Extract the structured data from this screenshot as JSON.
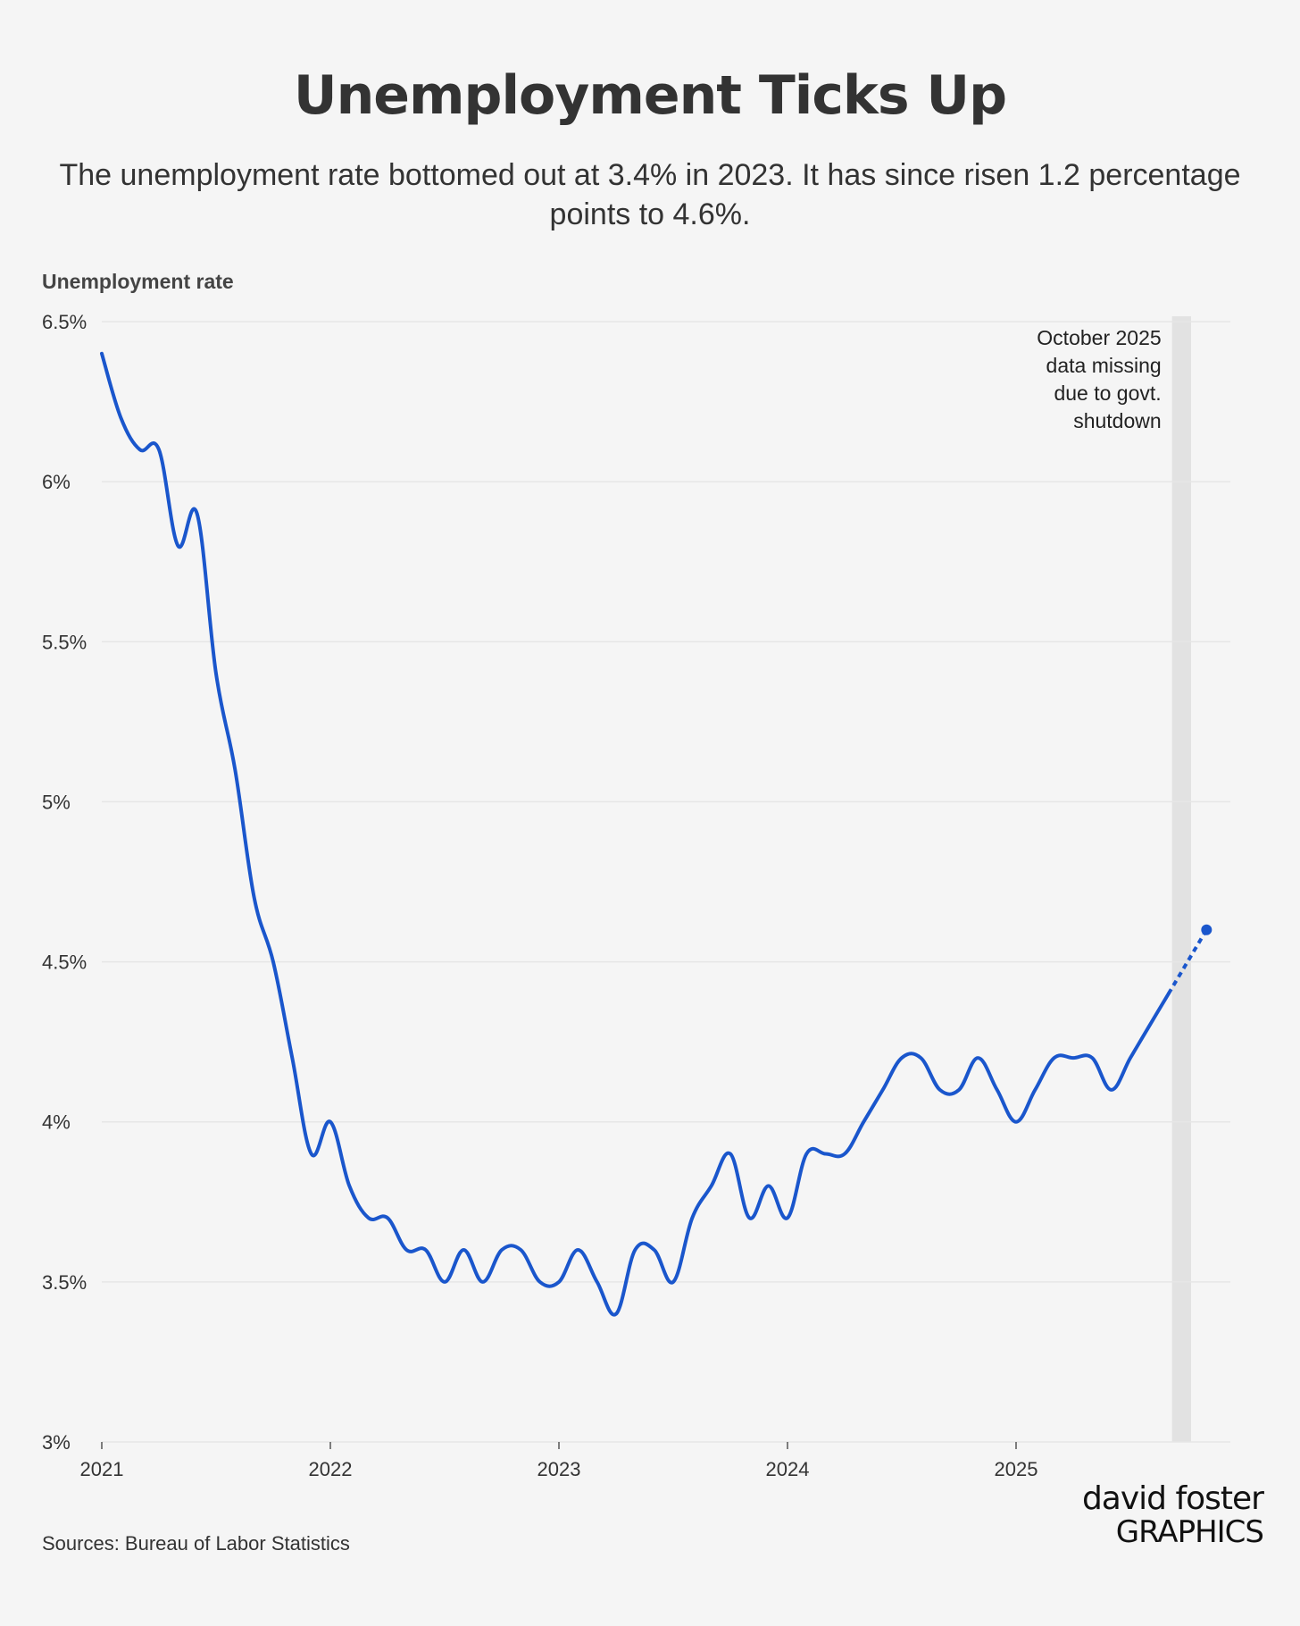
{
  "title": "Unemployment Ticks Up",
  "subtitle": "The unemployment rate bottomed out at 3.4% in 2023. It has since risen 1.2 percentage points to 4.6%.",
  "source": "Sources: Bureau of Labor Statistics",
  "logo": {
    "line1": "david foster",
    "line2": "GRAPHICS"
  },
  "colors": {
    "line": "#1a56cc",
    "grid": "#e6e6e6",
    "shade": "#e2e2e2",
    "text": "#333333",
    "logo_accent": "#1ea3e0"
  },
  "chart_data": {
    "type": "line",
    "title": "Unemployment Ticks Up",
    "ylabel": "Unemployment rate",
    "xlabel": "",
    "ylim": [
      3.0,
      6.5
    ],
    "yticks": [
      3.0,
      3.5,
      4.0,
      4.5,
      5.0,
      5.5,
      6.0,
      6.5
    ],
    "ytick_labels": [
      "3%",
      "3.5%",
      "4%",
      "4.5%",
      "5%",
      "5.5%",
      "6%",
      "6.5%"
    ],
    "xlim": [
      2021.0,
      2025.95
    ],
    "xticks": [
      2021,
      2022,
      2023,
      2024,
      2025
    ],
    "xtick_labels": [
      "2021",
      "2022",
      "2023",
      "2024",
      "2025"
    ],
    "grid": true,
    "series": [
      {
        "name": "Unemployment rate",
        "x": [
          2021.0,
          2021.0833,
          2021.1667,
          2021.25,
          2021.3333,
          2021.4167,
          2021.5,
          2021.5833,
          2021.6667,
          2021.75,
          2021.8333,
          2021.9167,
          2022.0,
          2022.0833,
          2022.1667,
          2022.25,
          2022.3333,
          2022.4167,
          2022.5,
          2022.5833,
          2022.6667,
          2022.75,
          2022.8333,
          2022.9167,
          2023.0,
          2023.0833,
          2023.1667,
          2023.25,
          2023.3333,
          2023.4167,
          2023.5,
          2023.5833,
          2023.6667,
          2023.75,
          2023.8333,
          2023.9167,
          2024.0,
          2024.0833,
          2024.1667,
          2024.25,
          2024.3333,
          2024.4167,
          2024.5,
          2024.5833,
          2024.6667,
          2024.75,
          2024.8333,
          2024.9167,
          2025.0,
          2025.0833,
          2025.1667,
          2025.25,
          2025.3333,
          2025.4167,
          2025.5,
          2025.5833,
          2025.6667
        ],
        "values": [
          6.4,
          6.2,
          6.1,
          6.1,
          5.8,
          5.9,
          5.4,
          5.1,
          4.7,
          4.5,
          4.2,
          3.9,
          4.0,
          3.8,
          3.7,
          3.7,
          3.6,
          3.6,
          3.5,
          3.6,
          3.5,
          3.6,
          3.6,
          3.5,
          3.5,
          3.6,
          3.5,
          3.4,
          3.6,
          3.6,
          3.5,
          3.7,
          3.8,
          3.9,
          3.7,
          3.8,
          3.7,
          3.9,
          3.9,
          3.9,
          4.0,
          4.1,
          4.2,
          4.2,
          4.1,
          4.1,
          4.2,
          4.1,
          4.0,
          4.1,
          4.2,
          4.2,
          4.2,
          4.1,
          4.2,
          4.3,
          4.4
        ]
      },
      {
        "name": "Gap (dashed)",
        "style": "dashed",
        "x": [
          2025.6667,
          2025.8333
        ],
        "values": [
          4.4,
          4.6
        ]
      }
    ],
    "highlight": {
      "x_range": [
        2025.6667,
        2025.75
      ],
      "label": "October 2025 data missing due to govt. shutdown",
      "label_lines": [
        "October 2025",
        "data missing",
        "due to govt.",
        "shutdown"
      ]
    },
    "last_point": {
      "x": 2025.8333,
      "value": 4.6
    }
  }
}
